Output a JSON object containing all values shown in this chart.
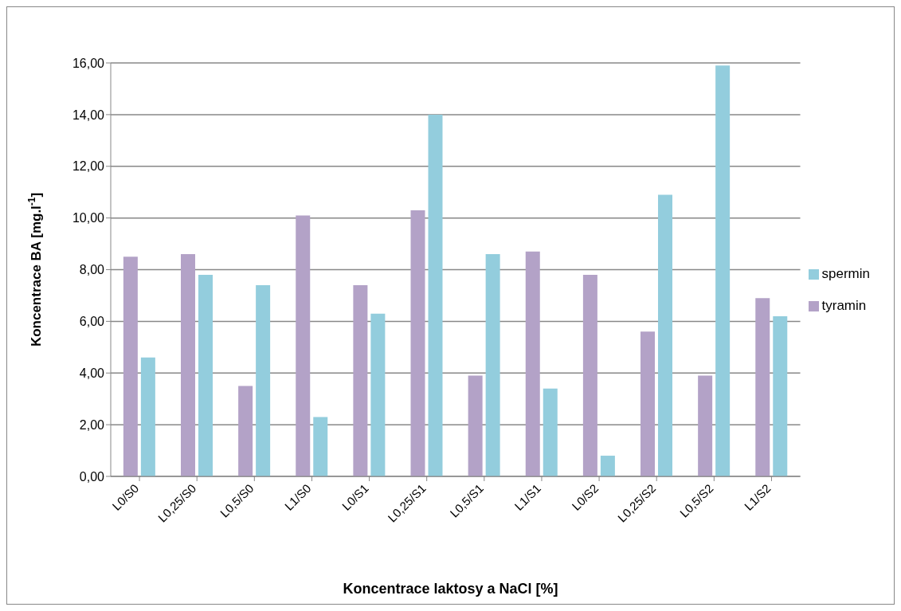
{
  "chart_data": {
    "type": "bar",
    "xlabel": "Koncentrace laktosy a NaCl [%]",
    "ylabel": "Koncentrace BA [mg.l$^{-1}$]",
    "categories": [
      "L0/S0",
      "L0,25/S0",
      "L0,5/S0",
      "L1/S0",
      "L0/S1",
      "L0,25/S1",
      "L0,5/S1",
      "L1/S1",
      "L0/S2",
      "L0,25/S2",
      "L0,5/S2",
      "L1/S2"
    ],
    "series": [
      {
        "name": "tyramin",
        "color": "#b3a2c7",
        "values": [
          8.5,
          8.6,
          3.5,
          10.1,
          7.4,
          10.3,
          3.9,
          8.7,
          7.8,
          5.6,
          3.9,
          6.9
        ]
      },
      {
        "name": "spermin",
        "color": "#93cddd",
        "values": [
          4.6,
          7.8,
          7.4,
          2.3,
          6.3,
          14.0,
          8.6,
          3.4,
          0.8,
          10.9,
          15.9,
          6.2
        ]
      }
    ],
    "ylim": [
      0,
      16
    ],
    "yticks": [
      {
        "value": 0,
        "label": "0,00"
      },
      {
        "value": 2,
        "label": "2,00"
      },
      {
        "value": 4,
        "label": "4,00"
      },
      {
        "value": 6,
        "label": "6,00"
      },
      {
        "value": 8,
        "label": "8,00"
      },
      {
        "value": 10,
        "label": "10,00"
      },
      {
        "value": 12,
        "label": "12,00"
      },
      {
        "value": 14,
        "label": "14,00"
      },
      {
        "value": 16,
        "label": "16,00"
      }
    ],
    "grid": "y",
    "legend": "right"
  }
}
